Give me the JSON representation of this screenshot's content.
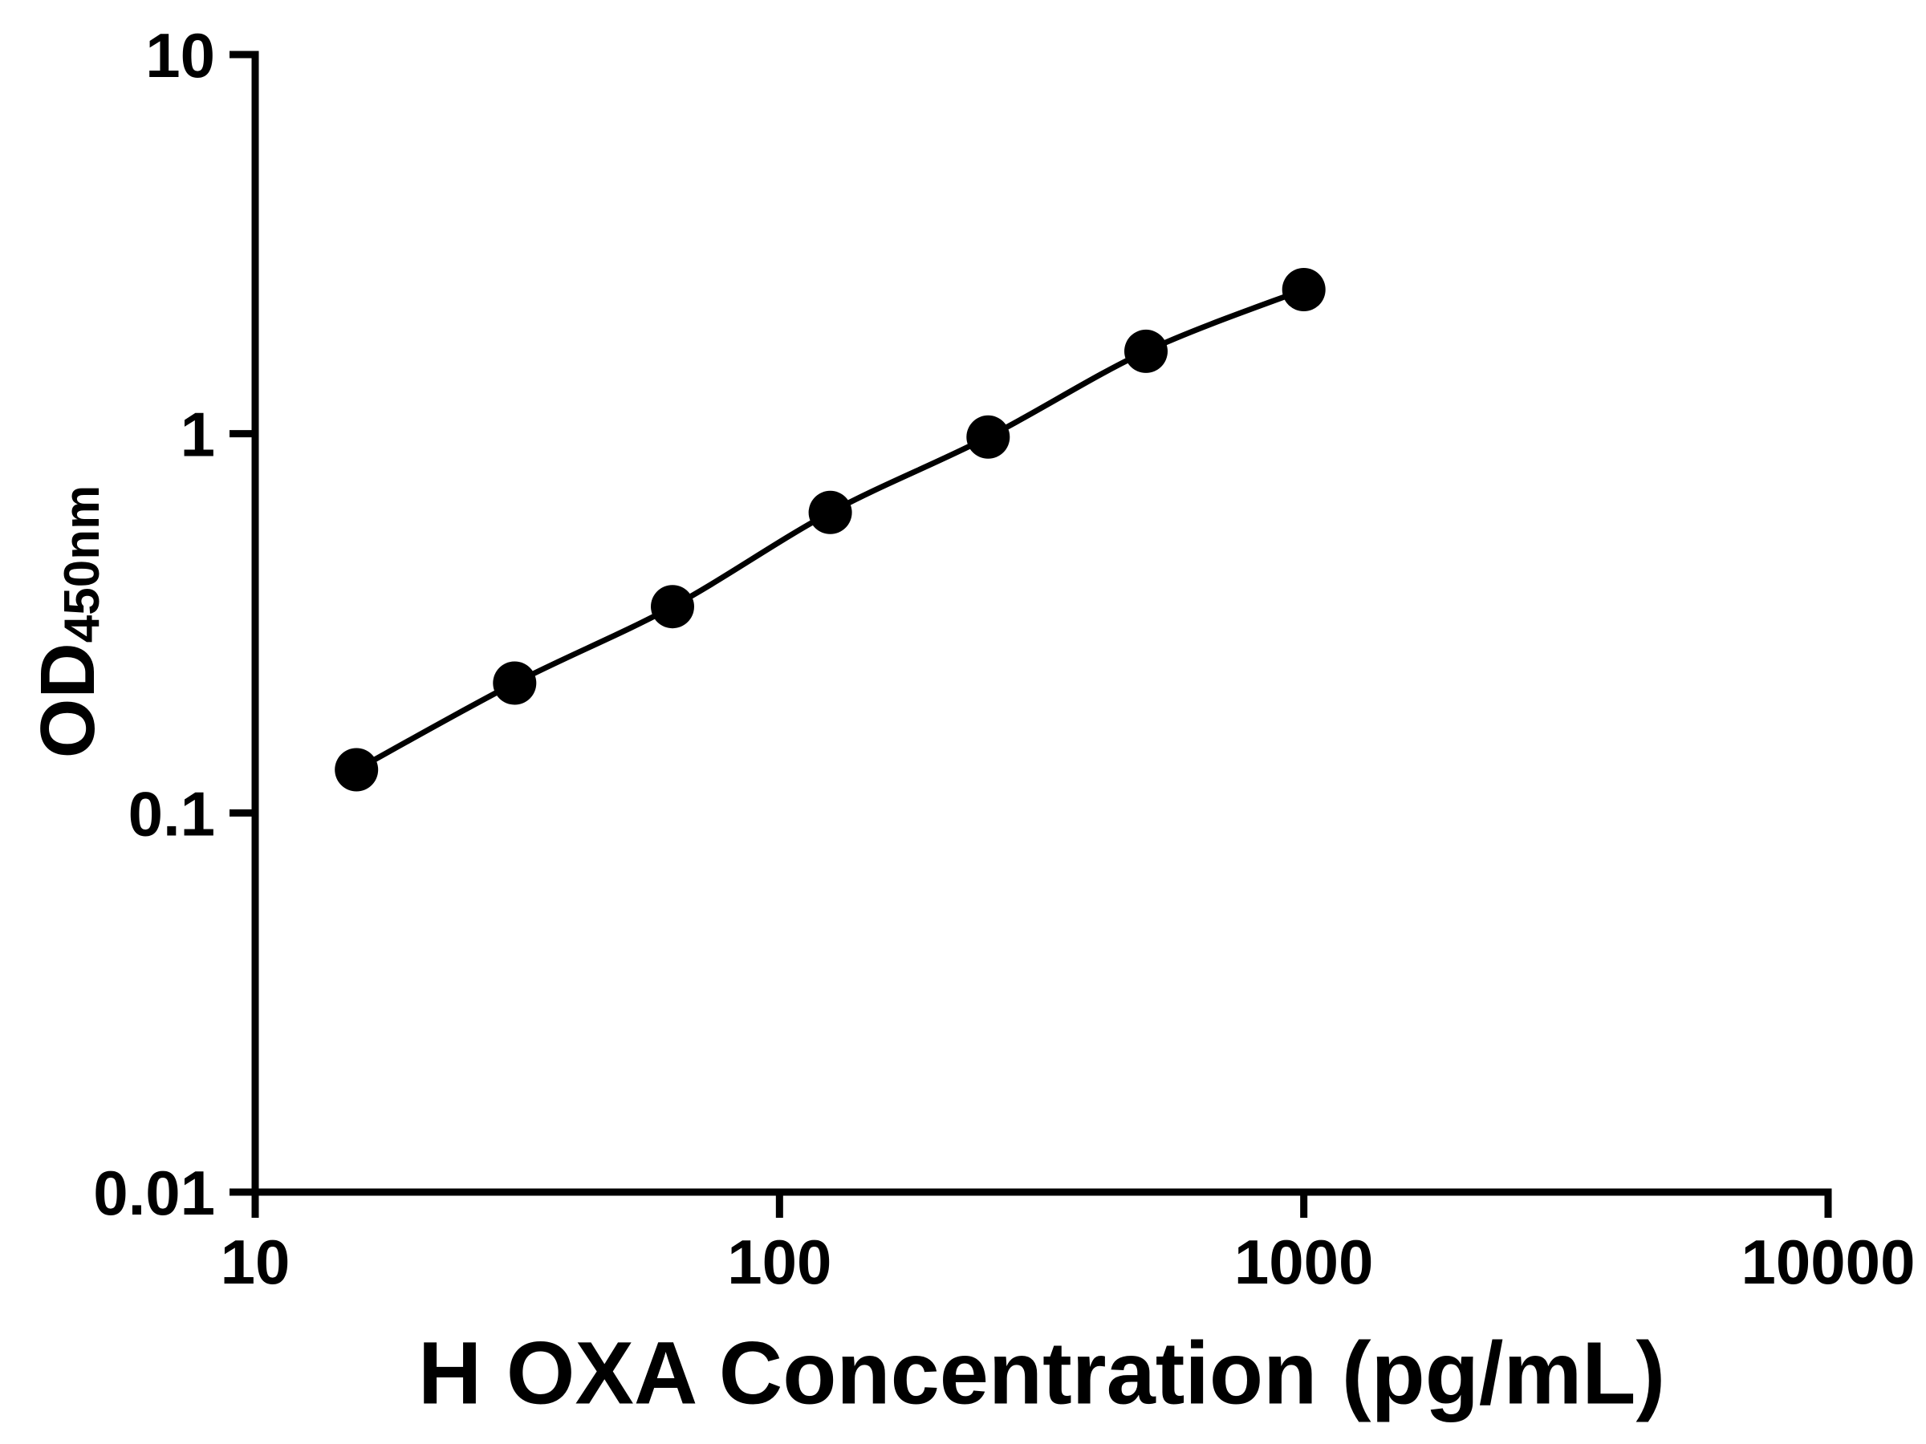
{
  "chart_data": {
    "type": "scatter",
    "line_connect": true,
    "title": "",
    "xlabel": "H OXA Concentration (pg/mL)",
    "ylabel_main": "OD",
    "ylabel_sub": "450nm",
    "xscale": "log",
    "yscale": "log",
    "xlim": [
      10,
      10000
    ],
    "ylim": [
      0.01,
      10
    ],
    "x_ticks": [
      "10",
      "100",
      "1000",
      "10000"
    ],
    "y_ticks": [
      "0.01",
      "0.1",
      "1",
      "10"
    ],
    "x": [
      15.6,
      31.25,
      62.5,
      125,
      250,
      500,
      1000
    ],
    "y": [
      0.13,
      0.22,
      0.35,
      0.62,
      0.98,
      1.65,
      2.4
    ],
    "grid": false,
    "legend": "none",
    "axis_color": "#000000",
    "line_color": "#000000",
    "marker_color": "#000000",
    "background_color": "#ffffff"
  }
}
